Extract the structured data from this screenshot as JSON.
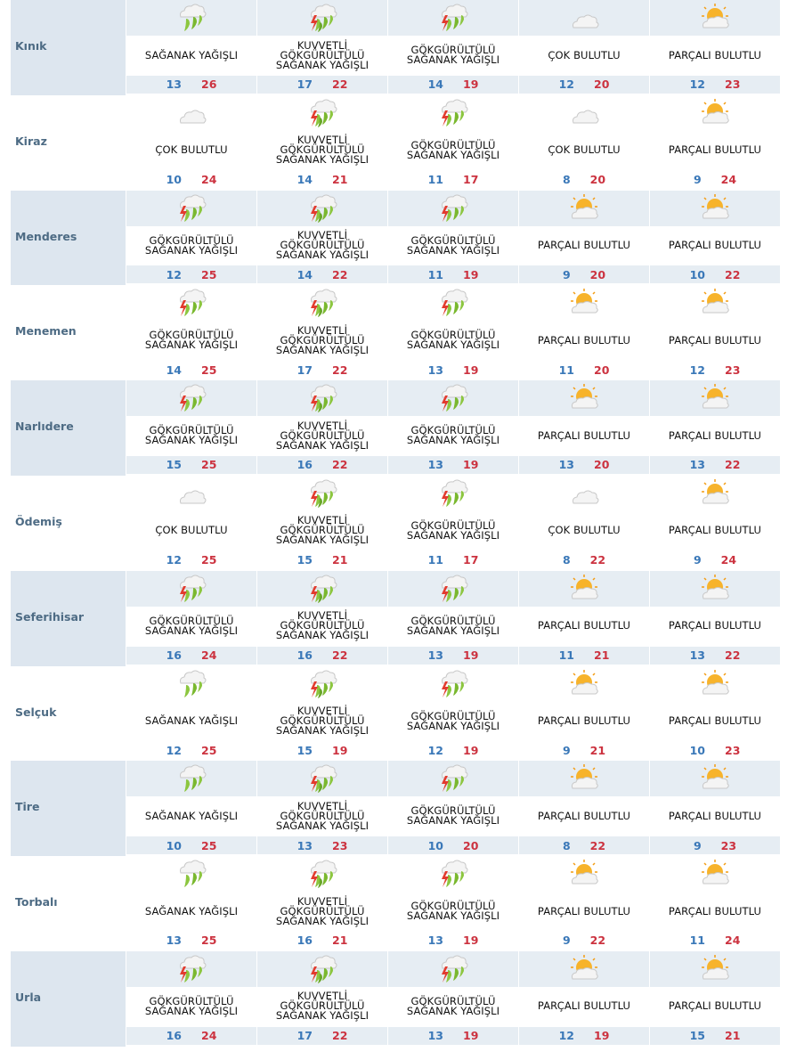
{
  "rows": [
    {
      "city": "Kınık",
      "days": [
        {
          "icon": "rain-showers-icon",
          "desc": "SAĞANAK YAĞIŞLI",
          "min": "13",
          "max": "26"
        },
        {
          "icon": "heavy-thunder-showers-icon",
          "desc": "KUVVETLİ GÖKGÜRÜLTÜLÜ SAĞANAK YAĞIŞLI",
          "min": "17",
          "max": "22"
        },
        {
          "icon": "thunder-showers-icon",
          "desc": "GÖKGÜRÜLTÜLÜ SAĞANAK YAĞIŞLI",
          "min": "14",
          "max": "19"
        },
        {
          "icon": "cloudy-icon",
          "desc": "ÇOK BULUTLU",
          "min": "12",
          "max": "20"
        },
        {
          "icon": "partly-cloudy-icon",
          "desc": "PARÇALI BULUTLU",
          "min": "12",
          "max": "23"
        }
      ]
    },
    {
      "city": "Kiraz",
      "days": [
        {
          "icon": "cloudy-icon",
          "desc": "ÇOK BULUTLU",
          "min": "10",
          "max": "24"
        },
        {
          "icon": "heavy-thunder-showers-icon",
          "desc": "KUVVETLİ GÖKGÜRÜLTÜLÜ SAĞANAK YAĞIŞLI",
          "min": "14",
          "max": "21"
        },
        {
          "icon": "thunder-showers-icon",
          "desc": "GÖKGÜRÜLTÜLÜ SAĞANAK YAĞIŞLI",
          "min": "11",
          "max": "17"
        },
        {
          "icon": "cloudy-icon",
          "desc": "ÇOK BULUTLU",
          "min": "8",
          "max": "20"
        },
        {
          "icon": "partly-cloudy-icon",
          "desc": "PARÇALI BULUTLU",
          "min": "9",
          "max": "24"
        }
      ]
    },
    {
      "city": "Menderes",
      "days": [
        {
          "icon": "thunder-showers-icon",
          "desc": "GÖKGÜRÜLTÜLÜ SAĞANAK YAĞIŞLI",
          "min": "12",
          "max": "25"
        },
        {
          "icon": "heavy-thunder-showers-icon",
          "desc": "KUVVETLİ GÖKGÜRÜLTÜLÜ SAĞANAK YAĞIŞLI",
          "min": "14",
          "max": "22"
        },
        {
          "icon": "thunder-showers-icon",
          "desc": "GÖKGÜRÜLTÜLÜ SAĞANAK YAĞIŞLI",
          "min": "11",
          "max": "19"
        },
        {
          "icon": "partly-cloudy-icon",
          "desc": "PARÇALI BULUTLU",
          "min": "9",
          "max": "20"
        },
        {
          "icon": "partly-cloudy-icon",
          "desc": "PARÇALI BULUTLU",
          "min": "10",
          "max": "22"
        }
      ]
    },
    {
      "city": "Menemen",
      "days": [
        {
          "icon": "thunder-showers-icon",
          "desc": "GÖKGÜRÜLTÜLÜ SAĞANAK YAĞIŞLI",
          "min": "14",
          "max": "25"
        },
        {
          "icon": "heavy-thunder-showers-icon",
          "desc": "KUVVETLİ GÖKGÜRÜLTÜLÜ SAĞANAK YAĞIŞLI",
          "min": "17",
          "max": "22"
        },
        {
          "icon": "thunder-showers-icon",
          "desc": "GÖKGÜRÜLTÜLÜ SAĞANAK YAĞIŞLI",
          "min": "13",
          "max": "19"
        },
        {
          "icon": "partly-cloudy-icon",
          "desc": "PARÇALI BULUTLU",
          "min": "11",
          "max": "20"
        },
        {
          "icon": "partly-cloudy-icon",
          "desc": "PARÇALI BULUTLU",
          "min": "12",
          "max": "23"
        }
      ]
    },
    {
      "city": "Narlıdere",
      "days": [
        {
          "icon": "thunder-showers-icon",
          "desc": "GÖKGÜRÜLTÜLÜ SAĞANAK YAĞIŞLI",
          "min": "15",
          "max": "25"
        },
        {
          "icon": "heavy-thunder-showers-icon",
          "desc": "KUVVETLİ GÖKGÜRÜLTÜLÜ SAĞANAK YAĞIŞLI",
          "min": "16",
          "max": "22"
        },
        {
          "icon": "thunder-showers-icon",
          "desc": "GÖKGÜRÜLTÜLÜ SAĞANAK YAĞIŞLI",
          "min": "13",
          "max": "19"
        },
        {
          "icon": "partly-cloudy-icon",
          "desc": "PARÇALI BULUTLU",
          "min": "13",
          "max": "20"
        },
        {
          "icon": "partly-cloudy-icon",
          "desc": "PARÇALI BULUTLU",
          "min": "13",
          "max": "22"
        }
      ]
    },
    {
      "city": "Ödemiş",
      "days": [
        {
          "icon": "cloudy-icon",
          "desc": "ÇOK BULUTLU",
          "min": "12",
          "max": "25"
        },
        {
          "icon": "heavy-thunder-showers-icon",
          "desc": "KUVVETLİ GÖKGÜRÜLTÜLÜ SAĞANAK YAĞIŞLI",
          "min": "15",
          "max": "21"
        },
        {
          "icon": "thunder-showers-icon",
          "desc": "GÖKGÜRÜLTÜLÜ SAĞANAK YAĞIŞLI",
          "min": "11",
          "max": "17"
        },
        {
          "icon": "cloudy-icon",
          "desc": "ÇOK BULUTLU",
          "min": "8",
          "max": "22"
        },
        {
          "icon": "partly-cloudy-icon",
          "desc": "PARÇALI BULUTLU",
          "min": "9",
          "max": "24"
        }
      ]
    },
    {
      "city": "Seferihisar",
      "days": [
        {
          "icon": "thunder-showers-icon",
          "desc": "GÖKGÜRÜLTÜLÜ SAĞANAK YAĞIŞLI",
          "min": "16",
          "max": "24"
        },
        {
          "icon": "heavy-thunder-showers-icon",
          "desc": "KUVVETLİ GÖKGÜRÜLTÜLÜ SAĞANAK YAĞIŞLI",
          "min": "16",
          "max": "22"
        },
        {
          "icon": "thunder-showers-icon",
          "desc": "GÖKGÜRÜLTÜLÜ SAĞANAK YAĞIŞLI",
          "min": "13",
          "max": "19"
        },
        {
          "icon": "partly-cloudy-icon",
          "desc": "PARÇALI BULUTLU",
          "min": "11",
          "max": "21"
        },
        {
          "icon": "partly-cloudy-icon",
          "desc": "PARÇALI BULUTLU",
          "min": "13",
          "max": "22"
        }
      ]
    },
    {
      "city": "Selçuk",
      "days": [
        {
          "icon": "rain-showers-icon",
          "desc": "SAĞANAK YAĞIŞLI",
          "min": "12",
          "max": "25"
        },
        {
          "icon": "heavy-thunder-showers-icon",
          "desc": "KUVVETLİ GÖKGÜRÜLTÜLÜ SAĞANAK YAĞIŞLI",
          "min": "15",
          "max": "19"
        },
        {
          "icon": "thunder-showers-icon",
          "desc": "GÖKGÜRÜLTÜLÜ SAĞANAK YAĞIŞLI",
          "min": "12",
          "max": "19"
        },
        {
          "icon": "partly-cloudy-icon",
          "desc": "PARÇALI BULUTLU",
          "min": "9",
          "max": "21"
        },
        {
          "icon": "partly-cloudy-icon",
          "desc": "PARÇALI BULUTLU",
          "min": "10",
          "max": "23"
        }
      ]
    },
    {
      "city": "Tire",
      "days": [
        {
          "icon": "rain-showers-icon",
          "desc": "SAĞANAK YAĞIŞLI",
          "min": "10",
          "max": "25"
        },
        {
          "icon": "heavy-thunder-showers-icon",
          "desc": "KUVVETLİ GÖKGÜRÜLTÜLÜ SAĞANAK YAĞIŞLI",
          "min": "13",
          "max": "23"
        },
        {
          "icon": "thunder-showers-icon",
          "desc": "GÖKGÜRÜLTÜLÜ SAĞANAK YAĞIŞLI",
          "min": "10",
          "max": "20"
        },
        {
          "icon": "partly-cloudy-icon",
          "desc": "PARÇALI BULUTLU",
          "min": "8",
          "max": "22"
        },
        {
          "icon": "partly-cloudy-icon",
          "desc": "PARÇALI BULUTLU",
          "min": "9",
          "max": "23"
        }
      ]
    },
    {
      "city": "Torbalı",
      "days": [
        {
          "icon": "rain-showers-icon",
          "desc": "SAĞANAK YAĞIŞLI",
          "min": "13",
          "max": "25"
        },
        {
          "icon": "heavy-thunder-showers-icon",
          "desc": "KUVVETLİ GÖKGÜRÜLTÜLÜ SAĞANAK YAĞIŞLI",
          "min": "16",
          "max": "21"
        },
        {
          "icon": "thunder-showers-icon",
          "desc": "GÖKGÜRÜLTÜLÜ SAĞANAK YAĞIŞLI",
          "min": "13",
          "max": "19"
        },
        {
          "icon": "partly-cloudy-icon",
          "desc": "PARÇALI BULUTLU",
          "min": "9",
          "max": "22"
        },
        {
          "icon": "partly-cloudy-icon",
          "desc": "PARÇALI BULUTLU",
          "min": "11",
          "max": "24"
        }
      ]
    },
    {
      "city": "Urla",
      "days": [
        {
          "icon": "thunder-showers-icon",
          "desc": "GÖKGÜRÜLTÜLÜ SAĞANAK YAĞIŞLI",
          "min": "16",
          "max": "24"
        },
        {
          "icon": "heavy-thunder-showers-icon",
          "desc": "KUVVETLİ GÖKGÜRÜLTÜLÜ SAĞANAK YAĞIŞLI",
          "min": "17",
          "max": "22"
        },
        {
          "icon": "thunder-showers-icon",
          "desc": "GÖKGÜRÜLTÜLÜ SAĞANAK YAĞIŞLI",
          "min": "13",
          "max": "19"
        },
        {
          "icon": "partly-cloudy-icon",
          "desc": "PARÇALI BULUTLU",
          "min": "12",
          "max": "19"
        },
        {
          "icon": "partly-cloudy-icon",
          "desc": "PARÇALI BULUTLU",
          "min": "15",
          "max": "21"
        }
      ]
    }
  ]
}
